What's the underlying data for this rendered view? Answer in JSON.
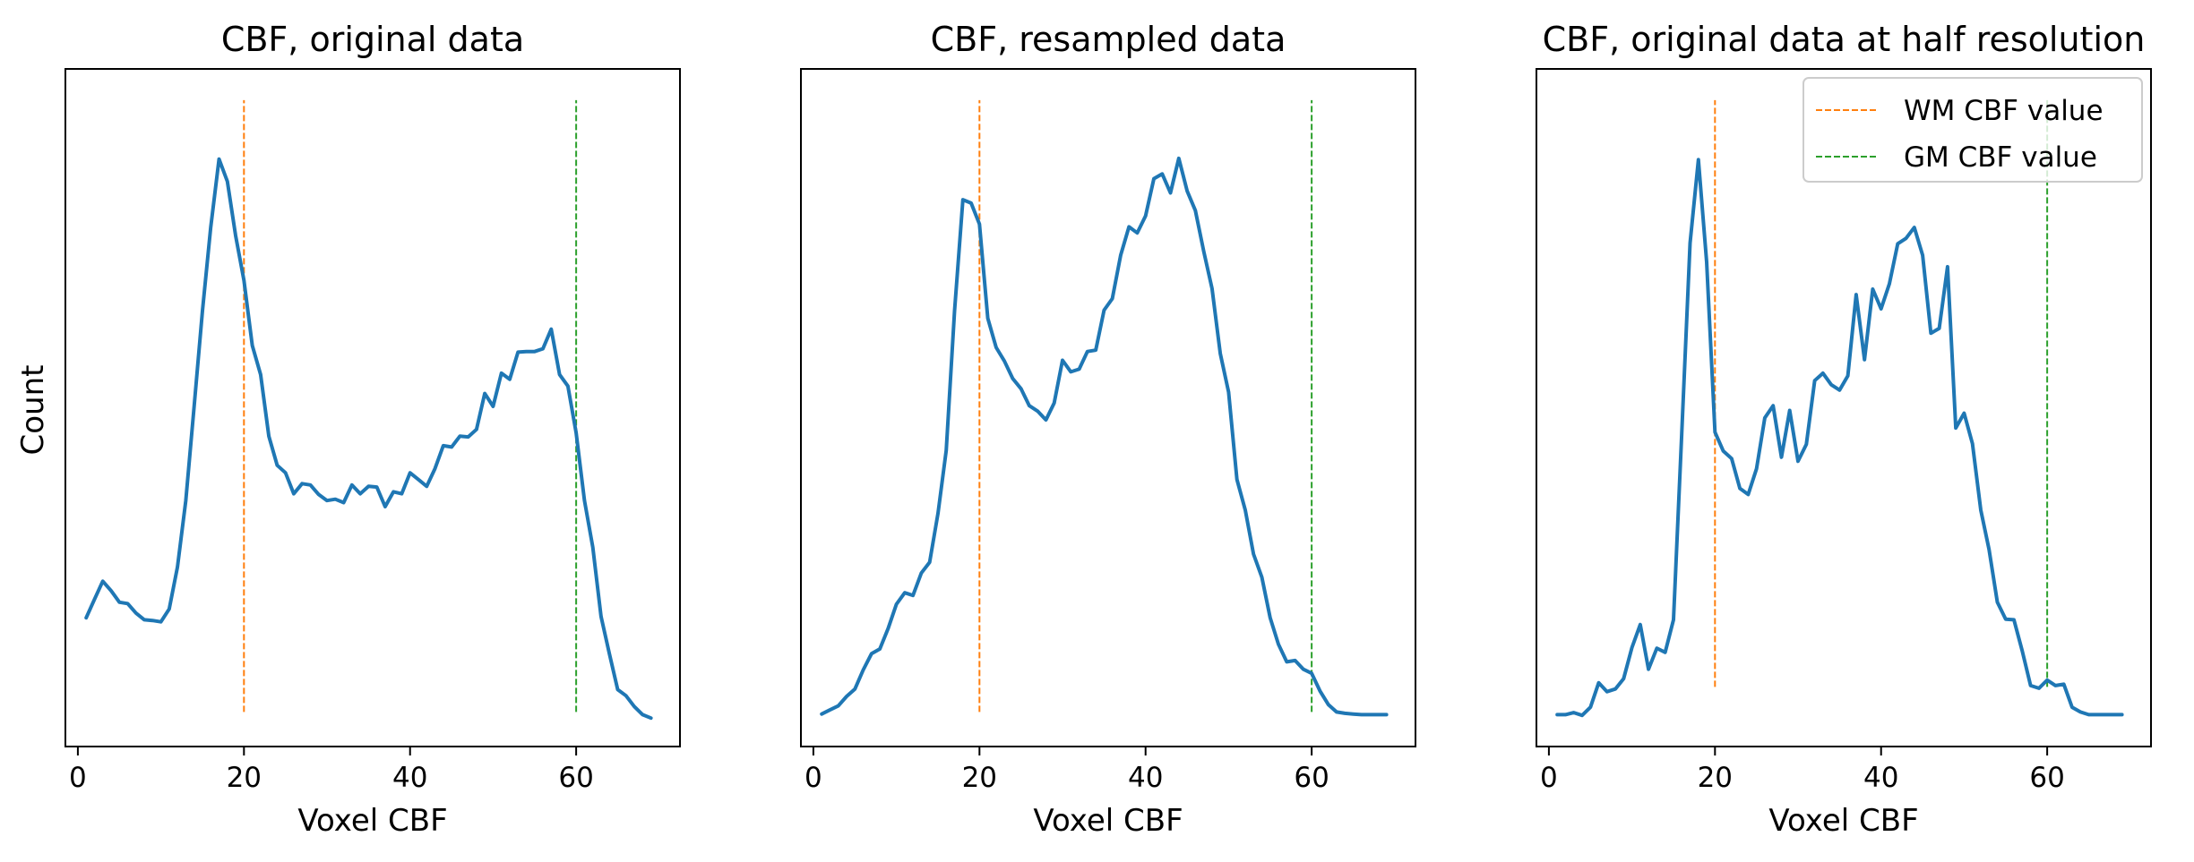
{
  "figure": {
    "shared_ylabel": "Count"
  },
  "chart_data": [
    {
      "type": "line",
      "title": "CBF, original data",
      "xlabel": "Voxel CBF",
      "ylabel": "Count",
      "xlim": [
        -1.5,
        72.5
      ],
      "ylim": [
        0,
        1
      ],
      "xticks": [
        0,
        20,
        40,
        60
      ],
      "yticks": [],
      "grid": false,
      "legend": false,
      "x": [
        1,
        2,
        3,
        4,
        5,
        6,
        7,
        8,
        9,
        10,
        11,
        12,
        13,
        14,
        15,
        16,
        17,
        18,
        19,
        20,
        21,
        22,
        23,
        24,
        25,
        26,
        27,
        28,
        29,
        30,
        31,
        32,
        33,
        34,
        35,
        36,
        37,
        38,
        39,
        40,
        41,
        42,
        43,
        44,
        45,
        46,
        47,
        48,
        49,
        50,
        51,
        52,
        53,
        54,
        55,
        56,
        57,
        58,
        59,
        60,
        61,
        62,
        63,
        64,
        65,
        66,
        67,
        68,
        69
      ],
      "series": [
        {
          "color": "#1f77b4",
          "values": [
            0.19,
            0.217,
            0.244,
            0.23,
            0.213,
            0.211,
            0.197,
            0.187,
            0.186,
            0.184,
            0.203,
            0.265,
            0.363,
            0.502,
            0.643,
            0.766,
            0.867,
            0.834,
            0.754,
            0.688,
            0.592,
            0.549,
            0.458,
            0.415,
            0.404,
            0.373,
            0.388,
            0.386,
            0.372,
            0.363,
            0.365,
            0.36,
            0.386,
            0.373,
            0.384,
            0.383,
            0.354,
            0.376,
            0.373,
            0.404,
            0.394,
            0.384,
            0.41,
            0.444,
            0.442,
            0.458,
            0.457,
            0.468,
            0.521,
            0.502,
            0.551,
            0.542,
            0.582,
            0.583,
            0.583,
            0.587,
            0.616,
            0.549,
            0.532,
            0.463,
            0.363,
            0.294,
            0.192,
            0.137,
            0.084,
            0.075,
            0.059,
            0.047,
            0.042
          ]
        }
      ],
      "vlines": [
        {
          "x": 20,
          "y_start": 0.051,
          "y_end": 0.954,
          "color": "#ff7f0e"
        },
        {
          "x": 60,
          "y_start": 0.051,
          "y_end": 0.954,
          "color": "#2ca02c"
        }
      ]
    },
    {
      "type": "line",
      "title": "CBF, resampled data",
      "xlabel": "Voxel CBF",
      "ylim": [
        0,
        1
      ],
      "xlim": [
        -1.5,
        72.5
      ],
      "xticks": [
        0,
        20,
        40,
        60
      ],
      "yticks": [],
      "grid": false,
      "legend": false,
      "x": [
        1,
        2,
        3,
        4,
        5,
        6,
        7,
        8,
        9,
        10,
        11,
        12,
        13,
        14,
        15,
        16,
        17,
        18,
        19,
        20,
        21,
        22,
        23,
        24,
        25,
        26,
        27,
        28,
        29,
        30,
        31,
        32,
        33,
        34,
        35,
        36,
        37,
        38,
        39,
        40,
        41,
        42,
        43,
        44,
        45,
        46,
        47,
        48,
        49,
        50,
        51,
        52,
        53,
        54,
        55,
        56,
        57,
        58,
        59,
        60,
        61,
        62,
        63,
        64,
        65,
        66,
        67,
        68,
        69
      ],
      "series": [
        {
          "color": "#1f77b4",
          "values": [
            0.048,
            0.054,
            0.06,
            0.074,
            0.085,
            0.113,
            0.137,
            0.144,
            0.174,
            0.21,
            0.227,
            0.223,
            0.256,
            0.272,
            0.344,
            0.437,
            0.643,
            0.807,
            0.802,
            0.771,
            0.632,
            0.589,
            0.569,
            0.543,
            0.528,
            0.503,
            0.495,
            0.482,
            0.507,
            0.57,
            0.553,
            0.557,
            0.583,
            0.585,
            0.644,
            0.661,
            0.725,
            0.767,
            0.758,
            0.783,
            0.838,
            0.845,
            0.817,
            0.868,
            0.82,
            0.791,
            0.731,
            0.676,
            0.58,
            0.523,
            0.394,
            0.349,
            0.284,
            0.25,
            0.19,
            0.151,
            0.125,
            0.127,
            0.114,
            0.108,
            0.082,
            0.062,
            0.051,
            0.049,
            0.048,
            0.047,
            0.047,
            0.047,
            0.047
          ]
        }
      ],
      "vlines": [
        {
          "x": 20,
          "y_start": 0.051,
          "y_end": 0.954,
          "color": "#ff7f0e"
        },
        {
          "x": 60,
          "y_start": 0.051,
          "y_end": 0.954,
          "color": "#2ca02c"
        }
      ]
    },
    {
      "type": "line",
      "title": "CBF, original data at half resolution",
      "xlabel": "Voxel CBF",
      "ylim": [
        0,
        1
      ],
      "xlim": [
        -1.5,
        72.5
      ],
      "xticks": [
        0,
        20,
        40,
        60
      ],
      "yticks": [],
      "grid": false,
      "legend": true,
      "legend_loc": "upper right",
      "legend_entries": [
        "WM CBF value",
        "GM CBF value"
      ],
      "x": [
        1,
        2,
        3,
        4,
        5,
        6,
        7,
        8,
        9,
        10,
        11,
        12,
        13,
        14,
        15,
        16,
        17,
        18,
        19,
        20,
        21,
        22,
        23,
        24,
        25,
        26,
        27,
        28,
        29,
        30,
        31,
        32,
        33,
        34,
        35,
        36,
        37,
        38,
        39,
        40,
        41,
        42,
        43,
        44,
        45,
        46,
        47,
        48,
        49,
        50,
        51,
        52,
        53,
        54,
        55,
        56,
        57,
        58,
        59,
        60,
        61,
        62,
        63,
        64,
        65,
        66,
        67,
        68,
        69
      ],
      "series": [
        {
          "color": "#1f77b4",
          "values": [
            0.047,
            0.047,
            0.05,
            0.046,
            0.058,
            0.094,
            0.081,
            0.085,
            0.1,
            0.146,
            0.18,
            0.114,
            0.145,
            0.139,
            0.187,
            0.462,
            0.743,
            0.866,
            0.715,
            0.464,
            0.436,
            0.425,
            0.381,
            0.372,
            0.41,
            0.485,
            0.503,
            0.427,
            0.496,
            0.421,
            0.446,
            0.54,
            0.551,
            0.534,
            0.526,
            0.547,
            0.667,
            0.571,
            0.675,
            0.646,
            0.683,
            0.742,
            0.75,
            0.766,
            0.725,
            0.61,
            0.617,
            0.708,
            0.47,
            0.492,
            0.447,
            0.349,
            0.291,
            0.213,
            0.188,
            0.187,
            0.141,
            0.09,
            0.086,
            0.098,
            0.09,
            0.092,
            0.058,
            0.051,
            0.047,
            0.047,
            0.047,
            0.047,
            0.047
          ]
        }
      ],
      "vlines": [
        {
          "name": "WM CBF value",
          "x": 20,
          "y_start": 0.088,
          "y_end": 0.954,
          "color": "#ff7f0e"
        },
        {
          "name": "GM CBF value",
          "x": 60,
          "y_start": 0.088,
          "y_end": 0.954,
          "color": "#2ca02c"
        }
      ]
    }
  ]
}
